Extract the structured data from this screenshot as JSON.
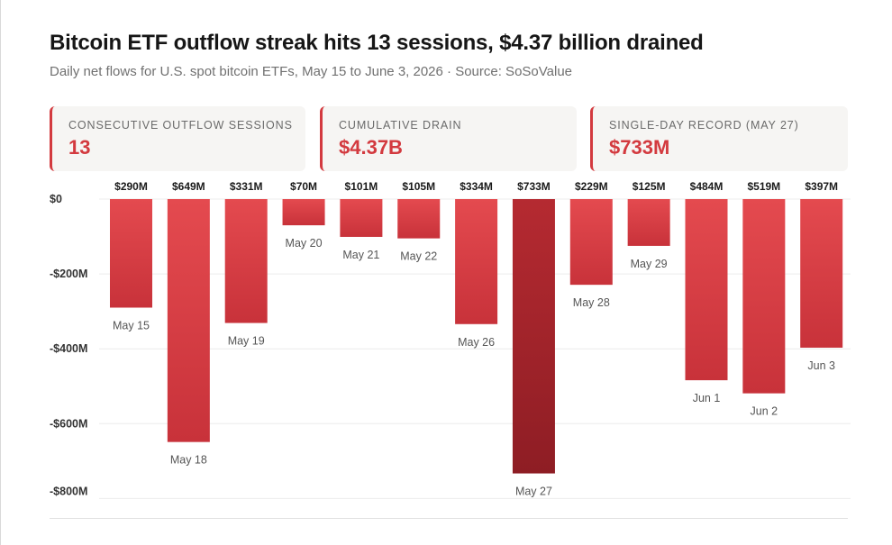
{
  "title": "Bitcoin ETF outflow streak hits 13 sessions, $4.37 billion drained",
  "subtitle": "Daily net flows for U.S. spot bitcoin ETFs, May 15 to June 3, 2026 · Source: SoSoValue",
  "stats": [
    {
      "label": "CONSECUTIVE OUTFLOW SESSIONS",
      "value": "13"
    },
    {
      "label": "CUMULATIVE DRAIN",
      "value": "$4.37B"
    },
    {
      "label": "SINGLE-DAY RECORD (MAY 27)",
      "value": "$733M"
    }
  ],
  "colors": {
    "accent": "#d33a3f",
    "bar_top": "#e44a4f",
    "bar_bottom": "#c8323a",
    "record_top": "#b52a31",
    "record_bottom": "#8e1d24",
    "card_bg": "#f6f5f3"
  },
  "chart_data": {
    "type": "bar",
    "title": "",
    "xlabel": "",
    "ylabel": "",
    "categories": [
      "May 15",
      "May 18",
      "May 19",
      "May 20",
      "May 21",
      "May 22",
      "May 26",
      "May 27",
      "May 28",
      "May 29",
      "Jun 1",
      "Jun 2",
      "Jun 3"
    ],
    "values": [
      -290,
      -649,
      -331,
      -70,
      -101,
      -105,
      -334,
      -733,
      -229,
      -125,
      -484,
      -519,
      -397
    ],
    "value_labels": [
      "$290M",
      "$649M",
      "$331M",
      "$70M",
      "$101M",
      "$105M",
      "$334M",
      "$733M",
      "$229M",
      "$125M",
      "$484M",
      "$519M",
      "$397M"
    ],
    "units": "USD millions",
    "ylim": [
      -800,
      0
    ],
    "yticks": [
      0,
      -200,
      -400,
      -600,
      -800
    ],
    "ytick_labels": [
      "$0",
      "-$200M",
      "-$400M",
      "-$600M",
      "-$800M"
    ],
    "highlight_category": "May 27",
    "grid": true,
    "legend": "none"
  }
}
